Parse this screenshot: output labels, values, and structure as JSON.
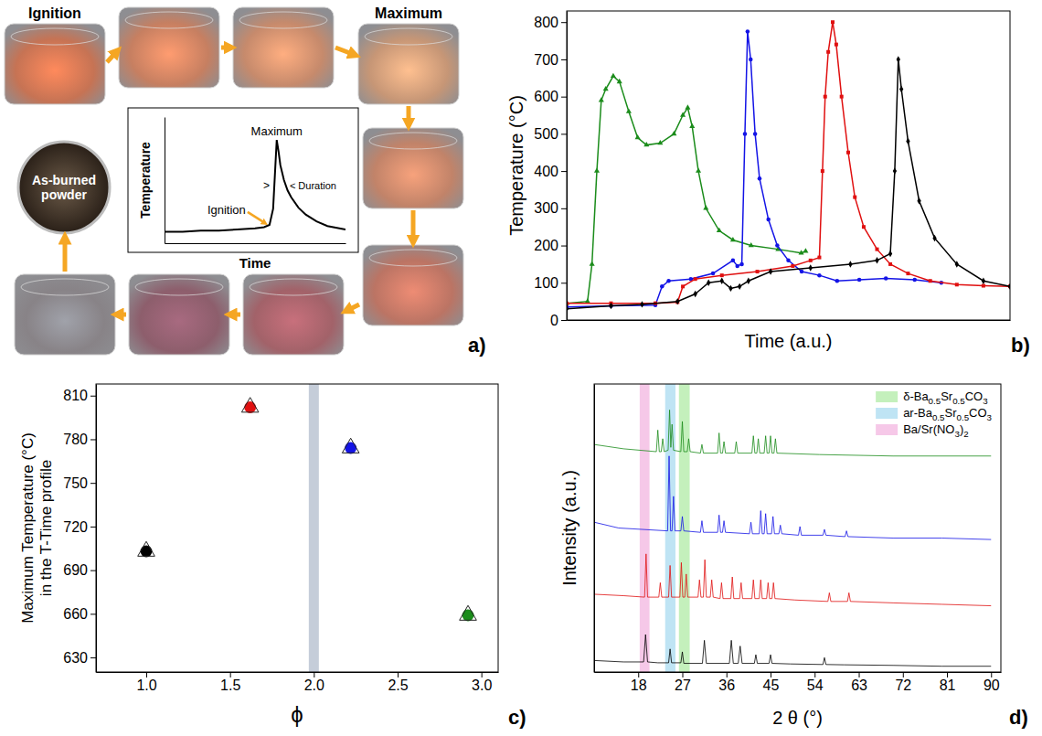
{
  "chart_data": [
    {
      "type": "photo_sequence",
      "panel": "a)",
      "annotations": [
        "Ignition",
        "Maximum",
        "As-burned powder"
      ],
      "inset": {
        "type": "line",
        "xlabel": "Time",
        "ylabel": "Temperature",
        "annotations": [
          "Maximum",
          "Ignition",
          ">",
          "< Duration"
        ],
        "xlim": [
          0,
          100
        ],
        "ylim": [
          0,
          110
        ],
        "tick_labels": false,
        "x": [
          0,
          10,
          20,
          30,
          40,
          50,
          55,
          58,
          60,
          61,
          62,
          63,
          64,
          66,
          68,
          70,
          74,
          78,
          84,
          90,
          100
        ],
        "values": [
          10,
          10,
          11,
          11,
          12,
          13,
          14,
          16,
          30,
          60,
          90,
          80,
          68,
          55,
          46,
          40,
          31,
          25,
          19,
          15,
          12
        ]
      }
    },
    {
      "type": "line",
      "panel": "b)",
      "xlabel": "Time (a.u.)",
      "ylabel": "Temperature (°C)",
      "xlim": [
        0,
        100
      ],
      "ylim": [
        0,
        830
      ],
      "yticks": [
        0,
        100,
        200,
        300,
        400,
        500,
        600,
        700,
        800
      ],
      "tick_labels": "y",
      "series": [
        {
          "color": "#1b8c1b",
          "marker": "triangle",
          "x": [
            0,
            4.7,
            5.7,
            6.8,
            7.8,
            8.8,
            10.5,
            11.9,
            14,
            16,
            18,
            21.1,
            24.2,
            26.2,
            27.3,
            28.3,
            29.7,
            31.4,
            34.4,
            37.5,
            41.6,
            47.7,
            52.9,
            53.9
          ],
          "values": [
            45,
            50,
            150,
            400,
            590,
            620,
            655,
            640,
            560,
            490,
            470,
            475,
            500,
            550,
            570,
            520,
            400,
            300,
            240,
            215,
            200,
            190,
            180,
            185
          ]
        },
        {
          "color": "#1414e6",
          "marker": "circle",
          "x": [
            0,
            10,
            20,
            21.5,
            23,
            28,
            33,
            37.5,
            38.5,
            39.5,
            40.2,
            40.8,
            41.5,
            42.5,
            43.5,
            45.5,
            47.5,
            50,
            53,
            57,
            61,
            66,
            72,
            78.5,
            84.5
          ],
          "values": [
            35,
            38,
            40,
            90,
            105,
            110,
            125,
            160,
            145,
            150,
            500,
            775,
            700,
            500,
            380,
            270,
            200,
            160,
            130,
            120,
            105,
            108,
            112,
            108,
            100
          ]
        },
        {
          "color": "#e01010",
          "marker": "square",
          "x": [
            0,
            10,
            20,
            25,
            26.2,
            29,
            35,
            43,
            51,
            55,
            57,
            57.7,
            58.3,
            59,
            60,
            60.8,
            62,
            63.5,
            65,
            67,
            70,
            73,
            77,
            82,
            88,
            94,
            100
          ],
          "values": [
            45,
            45,
            45,
            48,
            90,
            110,
            120,
            130,
            145,
            160,
            168,
            400,
            600,
            720,
            800,
            740,
            600,
            450,
            330,
            250,
            190,
            150,
            125,
            105,
            95,
            92,
            90
          ]
        },
        {
          "color": "#000000",
          "marker": "diamond",
          "x": [
            0,
            10,
            17,
            25,
            29,
            32,
            35,
            37,
            39,
            41,
            46,
            55,
            64,
            70,
            73,
            74,
            74.8,
            75.5,
            77,
            79.5,
            83,
            88,
            94,
            100
          ],
          "values": [
            30,
            38,
            42,
            50,
            70,
            100,
            105,
            85,
            90,
            105,
            130,
            140,
            150,
            160,
            178,
            400,
            700,
            620,
            480,
            320,
            220,
            150,
            105,
            90
          ]
        }
      ]
    },
    {
      "type": "scatter",
      "panel": "c)",
      "xlabel": "ϕ",
      "ylabel": "Maximum Temperature (°C) in the T-Time profile",
      "xlim": [
        0.7,
        3.1
      ],
      "ylim": [
        620,
        818
      ],
      "xticks": [
        {
          "value": 1,
          "label": "1.0"
        },
        {
          "value": 1.5,
          "label": "1.5"
        },
        {
          "value": 2,
          "label": "2.0"
        },
        {
          "value": 2.5,
          "label": "2.5"
        },
        {
          "value": 3,
          "label": "3.0"
        }
      ],
      "yticks": [
        630,
        660,
        690,
        720,
        750,
        780,
        810
      ],
      "x": [
        1.0,
        1.62,
        2.22,
        2.92
      ],
      "values": [
        703,
        802,
        774,
        659
      ],
      "colors": [
        "#000000",
        "#e01010",
        "#1414e6",
        "#1b8c1b"
      ],
      "marker": "circle+triangle",
      "highlight_band": [
        1.97,
        2.03
      ]
    },
    {
      "type": "line",
      "panel": "d)",
      "xlabel": "2 θ (°)",
      "ylabel": "Intensity (a.u.)",
      "xlim": [
        9,
        92
      ],
      "xticks": [
        18,
        27,
        36,
        45,
        54,
        63,
        72,
        81,
        90
      ],
      "ylim": [
        0,
        100
      ],
      "tick_labels": "x",
      "legend": "top right",
      "bands": [
        {
          "name": "δ-Ba0.5Sr0.5CO3",
          "color": "#c4f0bc",
          "range": [
            26.3,
            28.5
          ]
        },
        {
          "name": "ar-Ba0.5Sr0.5CO3",
          "color": "#bfe4f4",
          "range": [
            23.5,
            25.6
          ]
        },
        {
          "name": "Ba/Sr(NO3)2",
          "color": "#f6c8e8",
          "range": [
            18.3,
            20.3
          ]
        }
      ],
      "series": [
        {
          "color": "#1b8c1b",
          "x": [
            9,
            15,
            21.7,
            22,
            22.3,
            22.7,
            23,
            23.3,
            24.1,
            24.4,
            24.65,
            24.9,
            25.2,
            26.7,
            27,
            27.3,
            28,
            28.3,
            28.6,
            30.7,
            31,
            31.3,
            34.2,
            34.5,
            34.8,
            35.2,
            35.5,
            35.8,
            37.7,
            38,
            38.3,
            41.2,
            41.5,
            41.8,
            42.2,
            42.5,
            42.8,
            43.7,
            44,
            44.3,
            44.7,
            45,
            45.3,
            45.7,
            46,
            46.3,
            55,
            70,
            90
          ],
          "values": [
            79,
            77.5,
            76.5,
            84,
            76.5,
            76.5,
            81,
            76.5,
            77,
            91,
            78,
            86,
            77,
            76.5,
            87,
            76.5,
            76.5,
            81,
            76.5,
            76,
            79,
            76,
            76,
            83,
            76,
            76,
            80,
            76,
            76,
            80,
            76,
            76,
            82,
            76,
            76,
            81,
            76,
            76,
            82,
            76,
            76,
            82,
            76,
            76,
            81,
            76,
            75.5,
            75,
            75
          ]
        },
        {
          "color": "#1414e6",
          "x": [
            9,
            14,
            24,
            24.3,
            24.6,
            24.9,
            25.2,
            25.5,
            26.7,
            27,
            27.3,
            30.7,
            31,
            31.3,
            34.2,
            34.5,
            34.8,
            35.2,
            35.5,
            35.8,
            40.7,
            41,
            41.3,
            42.7,
            43,
            43.3,
            43.7,
            44,
            44.3,
            45.2,
            45.5,
            45.8,
            46.7,
            47,
            47.3,
            50.7,
            51,
            51.3,
            55.7,
            56,
            56.3,
            60.2,
            60.5,
            60.8,
            70,
            80,
            90
          ],
          "values": [
            52,
            50,
            49,
            75,
            49,
            49,
            61,
            49,
            49,
            54,
            49,
            48.5,
            52.5,
            48.5,
            48.5,
            54.5,
            48.5,
            48.5,
            52.5,
            48.5,
            48,
            52,
            48,
            48,
            56,
            48,
            48,
            55,
            48,
            48,
            54,
            48,
            48,
            51,
            48,
            47.5,
            50.5,
            47.5,
            47.5,
            49.5,
            47.5,
            47,
            49,
            47,
            46.5,
            46.5,
            46
          ]
        },
        {
          "color": "#e01010",
          "x": [
            9,
            15,
            19.3,
            19.6,
            19.9,
            22.2,
            22.5,
            22.8,
            24.2,
            24.5,
            24.8,
            26.5,
            26.8,
            27.1,
            27.5,
            27.8,
            28.1,
            30.2,
            30.5,
            30.8,
            31.3,
            31.6,
            31.9,
            32.7,
            33,
            33.3,
            34.7,
            35,
            35.3,
            36.9,
            37.2,
            37.5,
            38.7,
            39,
            39.3,
            41.2,
            41.5,
            41.8,
            42.7,
            43,
            43.3,
            44.2,
            44.5,
            44.8,
            45.3,
            45.6,
            45.9,
            50,
            56.7,
            57,
            57.3,
            60.7,
            61,
            61.3,
            70,
            80,
            90
          ],
          "values": [
            27,
            26.5,
            26,
            41,
            26,
            26,
            31,
            26,
            26,
            37,
            26,
            26,
            38,
            26,
            26,
            34,
            26,
            26,
            32,
            26,
            26,
            39,
            26,
            26,
            32,
            26,
            25.5,
            31,
            25.5,
            25.5,
            33,
            25.5,
            25.5,
            31,
            25.5,
            25.5,
            32,
            25.5,
            25.5,
            32,
            25.5,
            25.5,
            31,
            25.5,
            25.5,
            31,
            25.5,
            25,
            24.5,
            27.5,
            24.5,
            24.5,
            27.5,
            24.5,
            24,
            23.5,
            23
          ]
        },
        {
          "color": "#000000",
          "x": [
            9,
            15,
            19.1,
            19.5,
            19.9,
            22,
            24.2,
            24.5,
            24.8,
            26.7,
            27,
            27.3,
            31.1,
            31.5,
            31.9,
            36.6,
            37,
            37.4,
            38.4,
            38.8,
            39.2,
            41.7,
            42,
            42.3,
            44.7,
            45,
            45.3,
            49,
            55.7,
            56,
            56.3,
            60,
            70,
            80,
            90
          ],
          "values": [
            4,
            3.5,
            3.5,
            13,
            3.5,
            3.2,
            3.2,
            8,
            3.2,
            3.2,
            7,
            3,
            3,
            11,
            3,
            3,
            11,
            3,
            3,
            9,
            3,
            3,
            6,
            3,
            3,
            6,
            3,
            2.8,
            2.6,
            5,
            2.6,
            2.5,
            2.3,
            2,
            2
          ]
        }
      ]
    }
  ]
}
